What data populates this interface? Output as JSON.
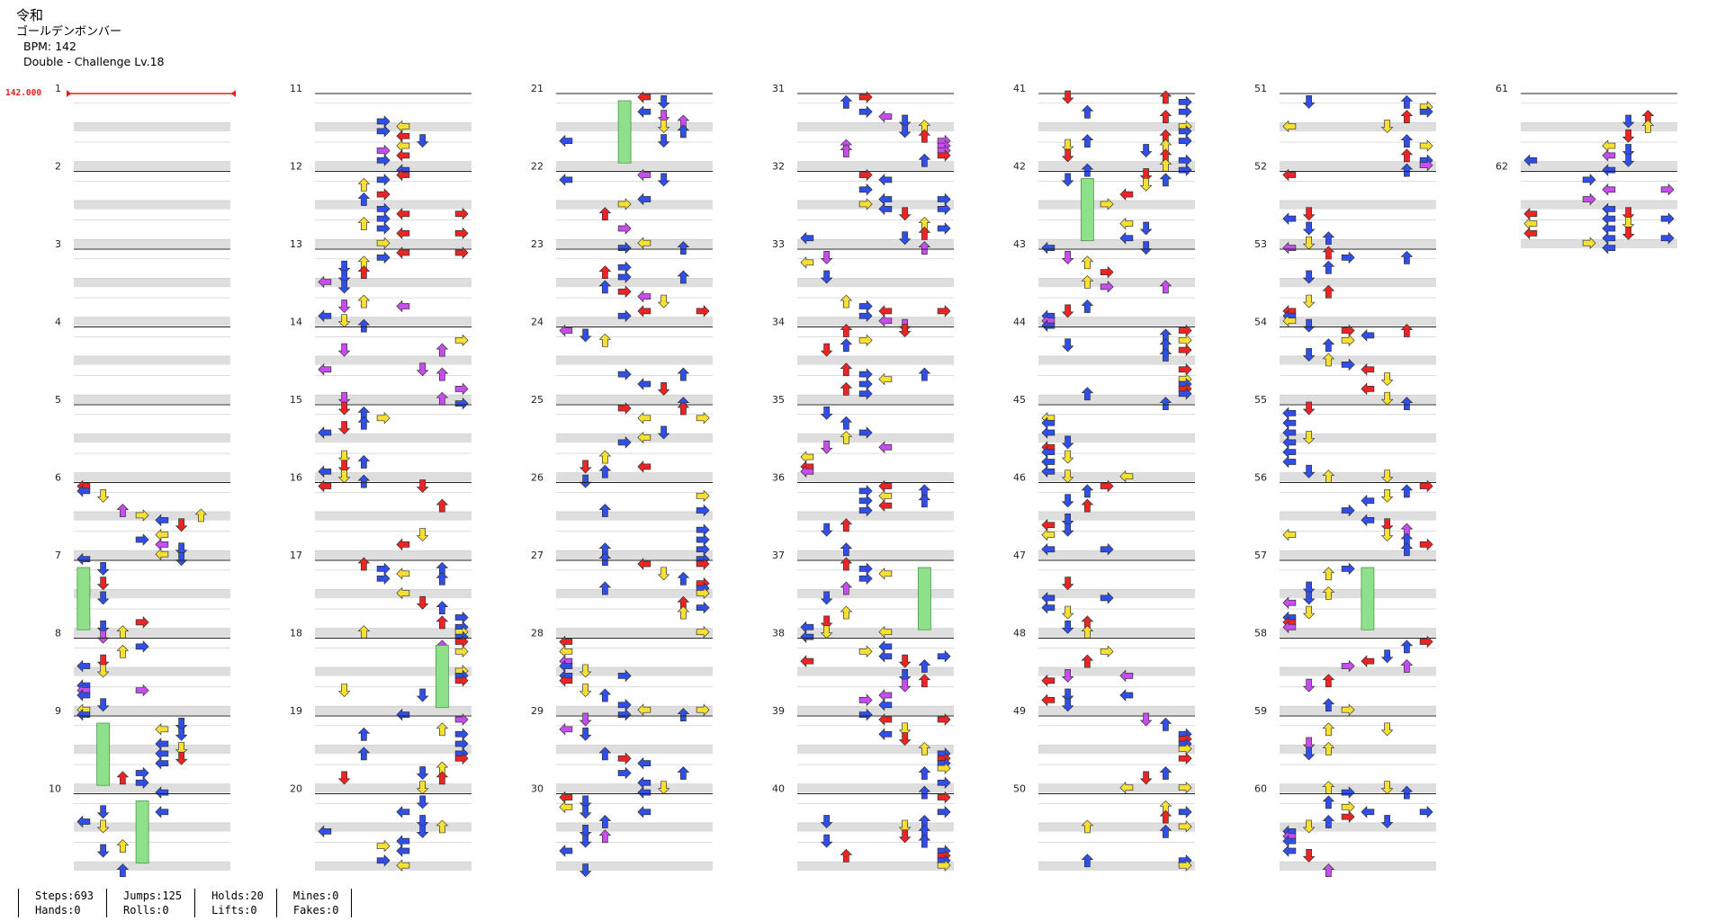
{
  "header": {
    "title": "令和",
    "artist": "ゴールデンボンバー",
    "bpm_line": "BPM: 142",
    "difficulty_line": "Double - Challenge Lv.18"
  },
  "bpm_marker": "142.000",
  "measure_count": 62,
  "measures_per_column": 10,
  "colors": {
    "red": "#ee2424",
    "blue": "#2f4fe8",
    "yellow": "#f6e034",
    "purple": "#c84cf0",
    "hold": "#8ee08a",
    "band": "#dedede",
    "bpm": "#e81c1c"
  },
  "icons": {
    "note": "arrow-icon",
    "hold": "hold-bar-icon"
  },
  "stats": [
    {
      "left": "Steps:693",
      "right": "Hands:0"
    },
    {
      "left": "Jumps:125",
      "right": "Rolls:0"
    },
    {
      "left": "Holds:20",
      "right": "Lifts:0"
    },
    {
      "left": "Mines:0",
      "right": "Fakes:0"
    }
  ]
}
